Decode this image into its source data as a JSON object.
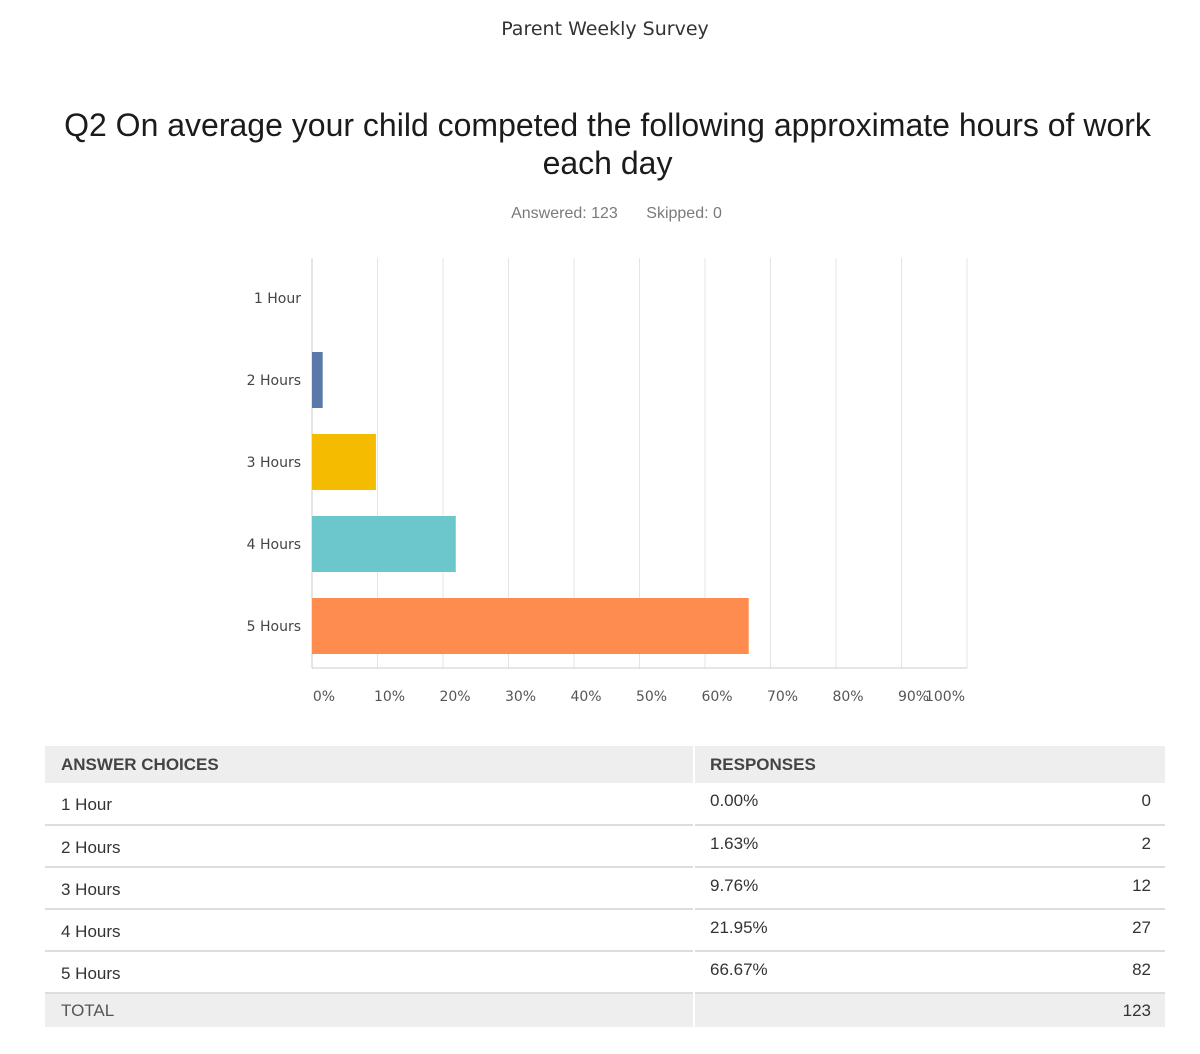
{
  "header": {
    "survey_title": "Parent Weekly Survey",
    "question": "Q2 On average your child competed the following approximate hours of work each day",
    "answered": "Answered: 123",
    "skipped": "Skipped: 0"
  },
  "chart_data": {
    "type": "bar",
    "orientation": "horizontal",
    "categories": [
      "1 Hour",
      "2 Hours",
      "3 Hours",
      "4 Hours",
      "5 Hours"
    ],
    "values": [
      0.0,
      1.63,
      9.76,
      21.95,
      66.67
    ],
    "colors": [
      "#5a78a8",
      "#5a78a8",
      "#f5bb00",
      "#6bc7cc",
      "#fd8c4e"
    ],
    "xlim": [
      0,
      100
    ],
    "xticks": [
      "0%",
      "10%",
      "20%",
      "30%",
      "40%",
      "50%",
      "60%",
      "70%",
      "80%",
      "90%",
      "100%"
    ],
    "grid": true,
    "title": "",
    "xlabel": "",
    "ylabel": ""
  },
  "table": {
    "headers": [
      "ANSWER CHOICES",
      "RESPONSES"
    ],
    "rows": [
      {
        "choice": "1 Hour",
        "percent": "0.00%",
        "count": "0"
      },
      {
        "choice": "2 Hours",
        "percent": "1.63%",
        "count": "2"
      },
      {
        "choice": "3 Hours",
        "percent": "9.76%",
        "count": "12"
      },
      {
        "choice": "4 Hours",
        "percent": "21.95%",
        "count": "27"
      },
      {
        "choice": "5 Hours",
        "percent": "66.67%",
        "count": "82"
      }
    ],
    "total_label": "TOTAL",
    "total_count": "123"
  }
}
